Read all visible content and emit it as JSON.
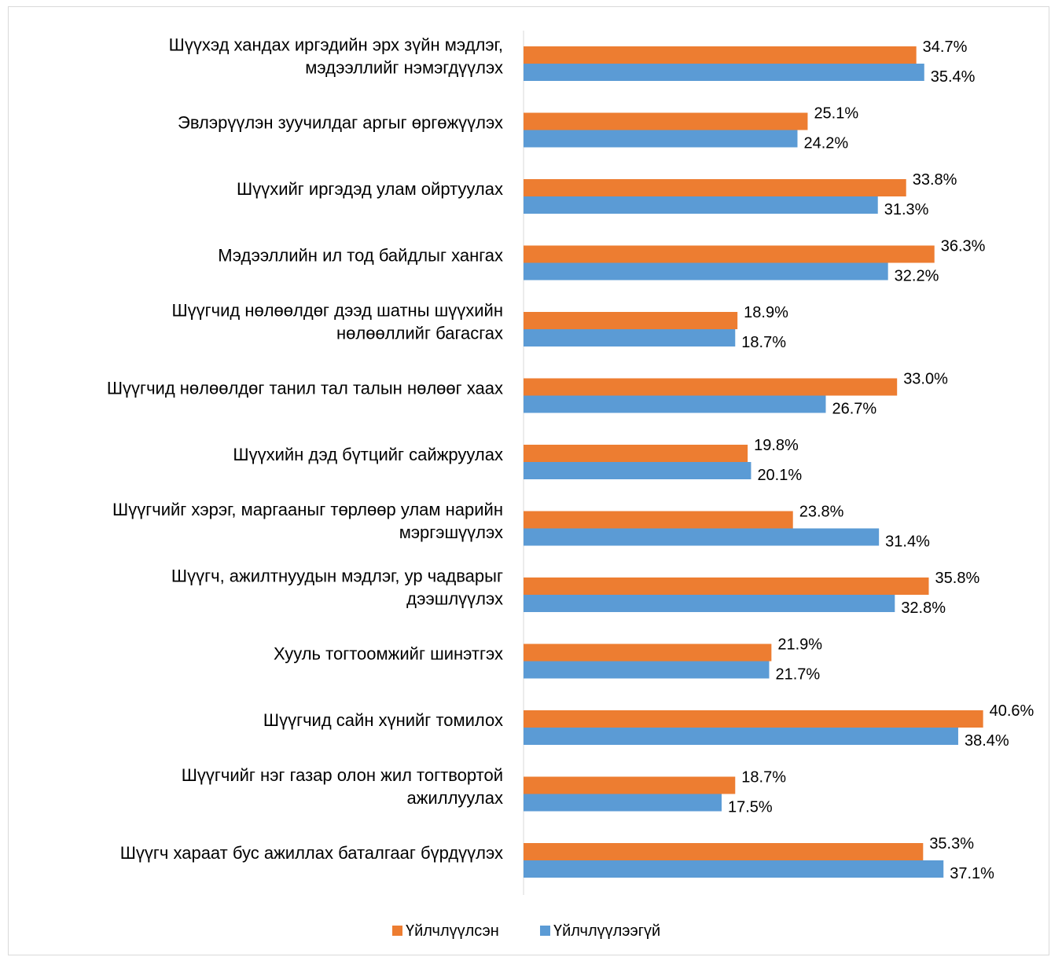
{
  "chart_data": {
    "type": "bar",
    "orientation": "horizontal",
    "title": "",
    "xlabel": "",
    "ylabel": "",
    "categories": [
      [
        "Шүүхэд хандах иргэдийн эрх зүйн мэдлэг,",
        "мэдээллийг нэмэгдүүлэх"
      ],
      [
        "Эвлэрүүлэн зуучилдаг аргыг өргөжүүлэх"
      ],
      [
        "Шүүхийг иргэдэд улам ойртуулах"
      ],
      [
        "Мэдээллийн ил тод байдлыг хангах"
      ],
      [
        "Шүүгчид нөлөөлдөг дээд шатны шүүхийн",
        "нөлөөллийг багасгах"
      ],
      [
        "Шүүгчид нөлөөлдөг танил тал талын нөлөөг хаах"
      ],
      [
        "Шүүхийн дэд бүтцийг сайжруулах"
      ],
      [
        "Шүүгчийг хэрэг, маргааныг төрлөөр улам нарийн",
        "мэргэшүүлэх"
      ],
      [
        "Шүүгч, ажилтнуудын мэдлэг, ур чадварыг",
        "дээшлүүлэх"
      ],
      [
        "Хууль тогтоомжийг шинэтгэх"
      ],
      [
        "Шүүгчид сайн хүнийг томилох"
      ],
      [
        "Шүүгчийг нэг газар олон жил тогтвортой",
        "ажиллуулах"
      ],
      [
        "Шүүгч хараат бус ажиллах баталгааг бүрдүүлэх"
      ]
    ],
    "series": [
      {
        "name": "Үйлчлүүлсэн",
        "color": "#ED7D31",
        "values": [
          34.7,
          25.1,
          33.8,
          36.3,
          18.9,
          33.0,
          19.8,
          23.8,
          35.8,
          21.9,
          40.6,
          18.7,
          35.3
        ],
        "labels": [
          "34.7%",
          "25.1%",
          "33.8%",
          "36.3%",
          "18.9%",
          "33.0%",
          "19.8%",
          "23.8%",
          "35.8%",
          "21.9%",
          "40.6%",
          "18.7%",
          "35.3%"
        ]
      },
      {
        "name": "Үйлчлүүлээгүй",
        "color": "#5B9BD5",
        "values": [
          35.4,
          24.2,
          31.3,
          32.2,
          18.7,
          26.7,
          20.1,
          31.4,
          32.8,
          21.7,
          38.4,
          17.5,
          37.1
        ],
        "labels": [
          "35.4%",
          "24.2%",
          "31.3%",
          "32.2%",
          "18.7%",
          "26.7%",
          "20.1%",
          "31.4%",
          "32.8%",
          "21.7%",
          "38.4%",
          "17.5%",
          "37.1%"
        ]
      }
    ],
    "xlim": [
      0,
      40.6
    ],
    "grid": false,
    "legend_position": "bottom"
  }
}
